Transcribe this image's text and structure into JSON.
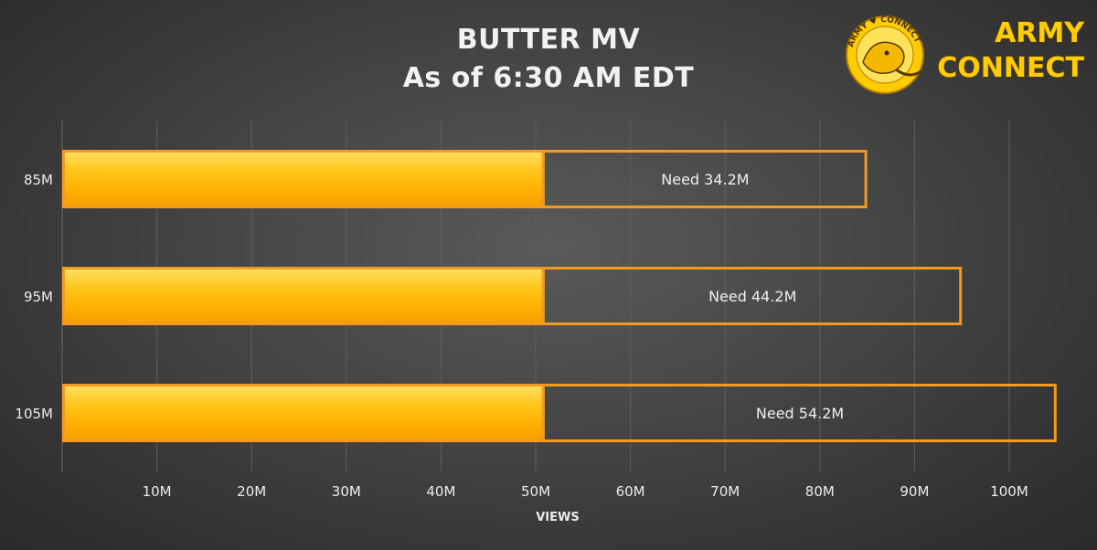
{
  "chart_data": {
    "type": "bar",
    "orientation": "horizontal",
    "stacked": true,
    "title_lines": [
      "BUTTER MV",
      "As of 6:30 AM EDT"
    ],
    "xlabel": "VIEWS",
    "ylabel": "",
    "xlim": [
      0,
      110000000
    ],
    "x_tick_labels": [
      "10M",
      "20M",
      "30M",
      "40M",
      "50M",
      "60M",
      "70M",
      "80M",
      "90M",
      "100M"
    ],
    "x_tick_values": [
      10000000,
      20000000,
      30000000,
      40000000,
      50000000,
      60000000,
      70000000,
      80000000,
      90000000,
      100000000
    ],
    "grid": true,
    "categories": [
      "85M",
      "95M",
      "105M"
    ],
    "series": [
      {
        "values": [
          50800000,
          50800000,
          50800000
        ],
        "color": "#ffb300"
      },
      {
        "values": [
          34200000,
          44200000,
          54200000
        ],
        "labels": [
          "Need 34.2M",
          "Need 44.2M",
          "Need 54.2M"
        ],
        "color": "#f39a1f"
      }
    ]
  },
  "logo": {
    "ring_text": "ARMY ♥ CONNECT",
    "line1": "ARMY",
    "line2": "CONNECT",
    "color": "#ffcc00"
  }
}
